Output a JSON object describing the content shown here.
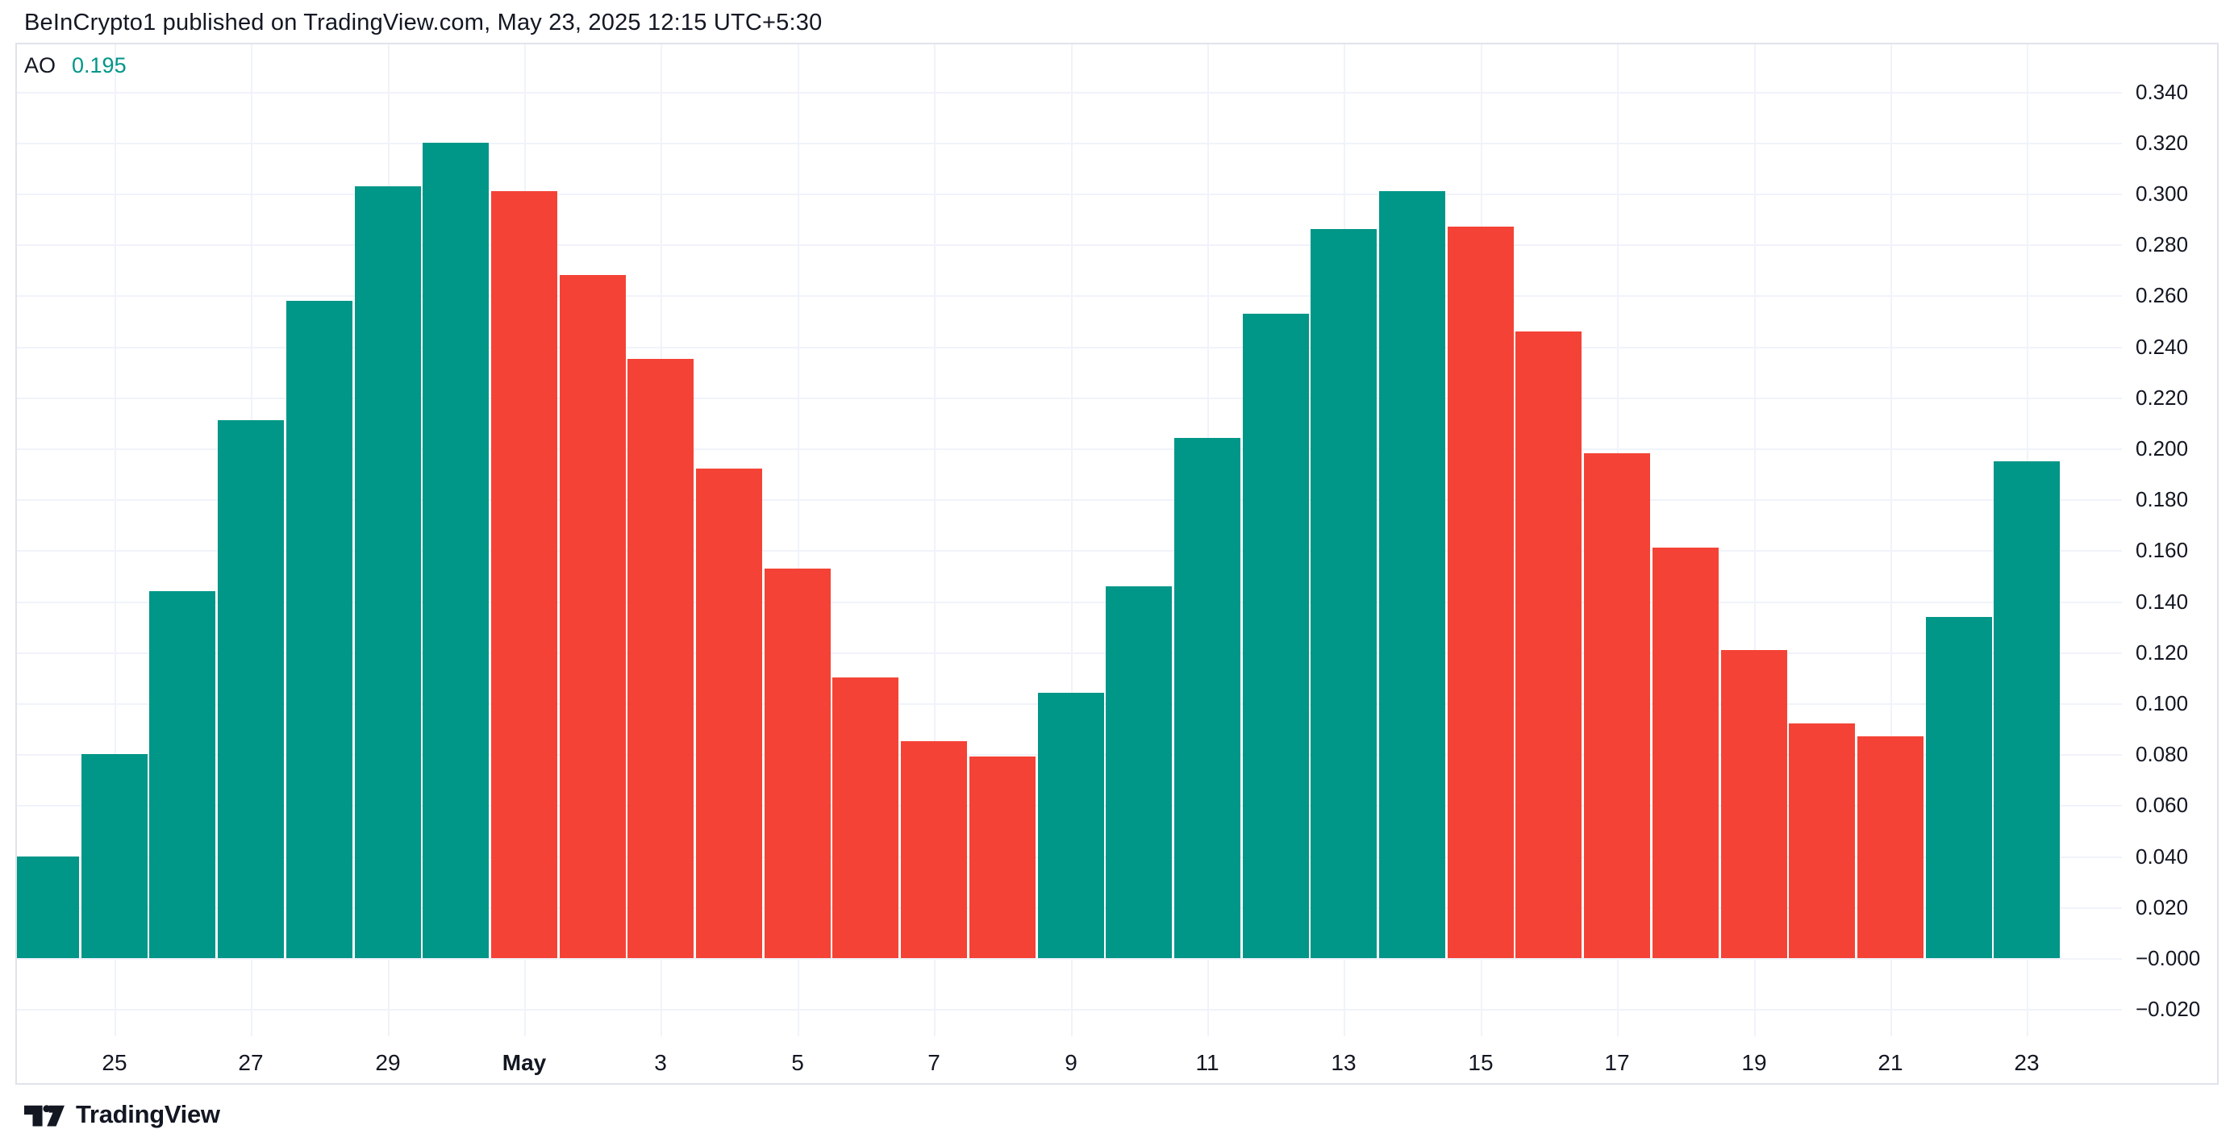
{
  "header": {
    "attribution": "BeInCrypto1 published on TradingView.com, May 23, 2025 12:15 UTC+5:30"
  },
  "legend": {
    "indicator": "AO",
    "value": "0.195"
  },
  "footer": {
    "brand": "TradingView"
  },
  "colors": {
    "up": "#009688",
    "down": "#F44336",
    "text": "#131722",
    "grid": "#F0F3FA",
    "border": "#E0E3EB",
    "background": "#FFFFFF",
    "legend_value": "#009688"
  },
  "chart_data": {
    "type": "bar",
    "title": "AO (Awesome Oscillator) histogram",
    "xlabel": "",
    "ylabel": "",
    "grid": true,
    "legend_position": "top-left",
    "ylim": [
      -0.031,
      0.359
    ],
    "y_tick_labels": [
      "0.340",
      "0.320",
      "0.300",
      "0.280",
      "0.260",
      "0.240",
      "0.220",
      "0.200",
      "0.180",
      "0.160",
      "0.140",
      "0.120",
      "0.100",
      "0.080",
      "0.060",
      "0.040",
      "0.020",
      "−0.000",
      "−0.020"
    ],
    "y_tick_values": [
      0.34,
      0.32,
      0.3,
      0.28,
      0.26,
      0.24,
      0.22,
      0.2,
      0.18,
      0.16,
      0.14,
      0.12,
      0.1,
      0.08,
      0.06,
      0.04,
      0.02,
      0.0,
      -0.02
    ],
    "x_tick_labels": [
      "25",
      "27",
      "29",
      "May",
      "3",
      "5",
      "7",
      "9",
      "11",
      "13",
      "15",
      "17",
      "19",
      "21",
      "23"
    ],
    "x_ticks_note": "daily bars Apr 24 - May 23; ticks sit under every second bar starting with bar 2",
    "bars": [
      {
        "value": 0.04,
        "trend": "up"
      },
      {
        "value": 0.08,
        "trend": "up"
      },
      {
        "value": 0.144,
        "trend": "up"
      },
      {
        "value": 0.211,
        "trend": "up"
      },
      {
        "value": 0.258,
        "trend": "up"
      },
      {
        "value": 0.303,
        "trend": "up"
      },
      {
        "value": 0.32,
        "trend": "up"
      },
      {
        "value": 0.301,
        "trend": "down"
      },
      {
        "value": 0.268,
        "trend": "down"
      },
      {
        "value": 0.235,
        "trend": "down"
      },
      {
        "value": 0.192,
        "trend": "down"
      },
      {
        "value": 0.153,
        "trend": "down"
      },
      {
        "value": 0.11,
        "trend": "down"
      },
      {
        "value": 0.085,
        "trend": "down"
      },
      {
        "value": 0.079,
        "trend": "down"
      },
      {
        "value": 0.104,
        "trend": "up"
      },
      {
        "value": 0.146,
        "trend": "up"
      },
      {
        "value": 0.204,
        "trend": "up"
      },
      {
        "value": 0.253,
        "trend": "up"
      },
      {
        "value": 0.286,
        "trend": "up"
      },
      {
        "value": 0.301,
        "trend": "up"
      },
      {
        "value": 0.287,
        "trend": "down"
      },
      {
        "value": 0.246,
        "trend": "down"
      },
      {
        "value": 0.198,
        "trend": "down"
      },
      {
        "value": 0.161,
        "trend": "down"
      },
      {
        "value": 0.121,
        "trend": "down"
      },
      {
        "value": 0.092,
        "trend": "down"
      },
      {
        "value": 0.087,
        "trend": "down"
      },
      {
        "value": 0.134,
        "trend": "up"
      },
      {
        "value": 0.195,
        "trend": "up"
      }
    ]
  }
}
